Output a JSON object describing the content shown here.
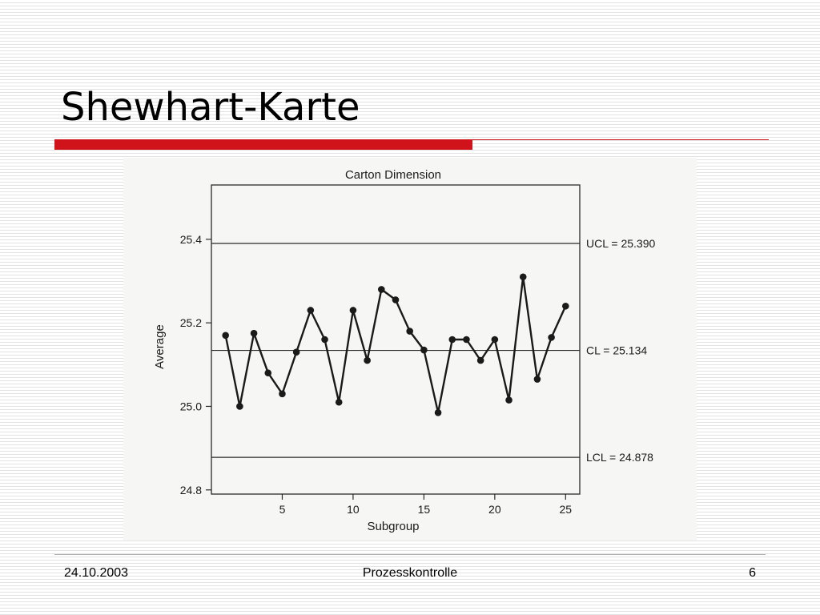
{
  "slide": {
    "title": "Shewhart-Karte",
    "accent_color": "#d0121b",
    "footer": {
      "date": "24.10.2003",
      "center": "Prozesskontrolle",
      "page": "6"
    }
  },
  "chart_data": {
    "type": "line",
    "title": "Carton Dimension",
    "xlabel": "Subgroup",
    "ylabel": "Average",
    "xlim": [
      0,
      26
    ],
    "ylim": [
      24.79,
      25.53
    ],
    "xticks": [
      5,
      10,
      15,
      20,
      25
    ],
    "yticks": [
      24.8,
      25.0,
      25.2,
      25.4
    ],
    "ytick_labels": [
      "24.8",
      "25.0",
      "25.2",
      "25.4"
    ],
    "grid": false,
    "x": [
      1,
      2,
      3,
      4,
      5,
      6,
      7,
      8,
      9,
      10,
      11,
      12,
      13,
      14,
      15,
      16,
      17,
      18,
      19,
      20,
      21,
      22,
      23,
      24,
      25
    ],
    "series": [
      {
        "values": [
          25.17,
          25.0,
          25.175,
          25.08,
          25.03,
          25.13,
          25.23,
          25.16,
          25.01,
          25.23,
          25.11,
          25.28,
          25.255,
          25.18,
          25.135,
          24.985,
          25.16,
          25.16,
          25.11,
          25.16,
          25.015,
          25.31,
          25.065,
          25.165,
          25.24
        ],
        "color": "#1a1a1a"
      }
    ],
    "control_limits": [
      {
        "label": "UCL = 25.390",
        "value": 25.39
      },
      {
        "label": "CL = 25.134",
        "value": 25.134
      },
      {
        "label": "LCL = 24.878",
        "value": 24.878
      }
    ]
  }
}
